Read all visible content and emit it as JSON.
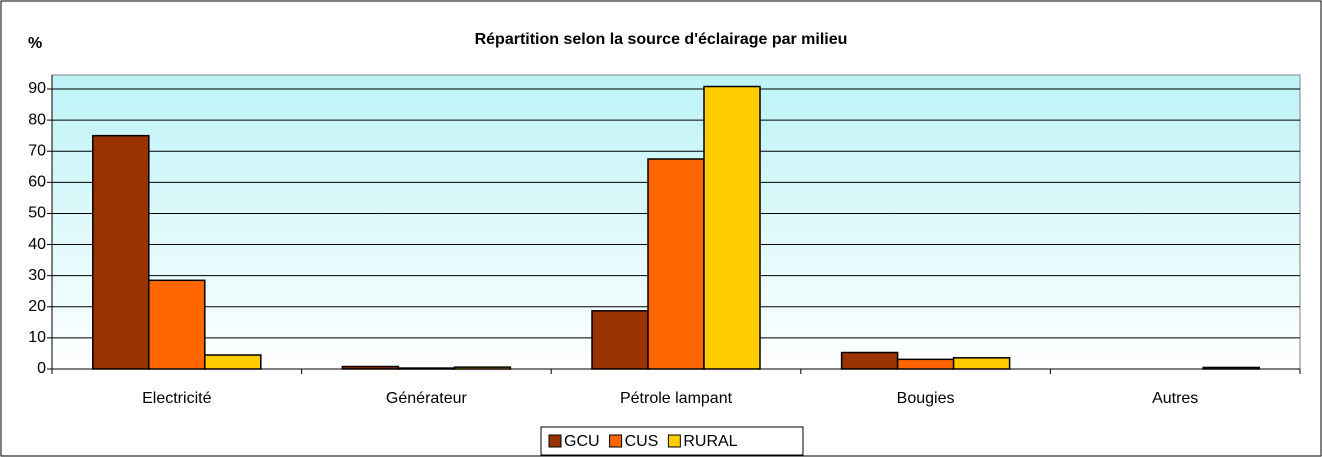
{
  "chart_data": {
    "type": "bar",
    "title": "Répartition selon la source d'éclairage par milieu",
    "y_label": "%",
    "categories": [
      "Electricité",
      "Générateur",
      "Pétrole lampant",
      "Bougies",
      "Autres"
    ],
    "series": [
      {
        "name": "GCU",
        "color": "#993300",
        "values": [
          75,
          0.8,
          18.7,
          5.3,
          0
        ]
      },
      {
        "name": "CUS",
        "color": "#FF6600",
        "values": [
          28.5,
          0.3,
          67.5,
          3.1,
          0
        ]
      },
      {
        "name": "RURAL",
        "color": "#FFCC00",
        "values": [
          4.5,
          0.6,
          90.8,
          3.6,
          0.5
        ]
      }
    ],
    "ylim": [
      0,
      94.5
    ],
    "yticks": [
      0,
      10,
      20,
      30,
      40,
      50,
      60,
      70,
      80,
      90
    ],
    "grid": true,
    "legend": "bottom"
  }
}
